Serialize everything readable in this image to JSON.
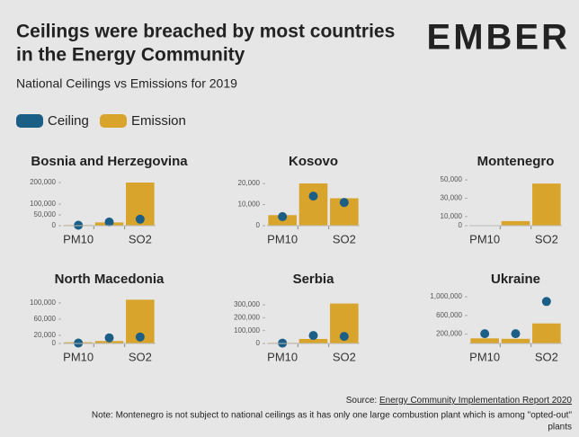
{
  "title_lines": [
    "Ceilings were breached by most countries",
    "in the Energy Community"
  ],
  "subtitle": "National Ceilings vs Emissions for 2019",
  "logo": "EMBER",
  "source_label": "Source:",
  "source_link": "Energy Community Implementation Report 2020",
  "note_lines": [
    "Note: Montenegro is not subject to national ceilings as it has only one large combustion plant which is among \"opted-out\"",
    "plants"
  ],
  "chart_data": [
    {
      "type": "bar",
      "title": "Bosnia and Herzegovina",
      "categories": [
        "PM10",
        null,
        "SO2"
      ],
      "ylim": [
        0,
        225000
      ],
      "yticks": [
        0,
        {
          "value": 50000,
          "label": "50,000"
        },
        {
          "value": 100000,
          "label": "100,000"
        },
        {
          "value": 200000,
          "label": "200,000"
        }
      ],
      "series": [
        {
          "name": "Emission",
          "type": "bar",
          "color": "#d9a42b",
          "values": [
            3000,
            15000,
            200000
          ]
        },
        {
          "name": "Ceiling",
          "type": "scatter",
          "color": "#1b5e86",
          "values": [
            2000,
            17000,
            30000
          ]
        }
      ]
    },
    {
      "type": "bar",
      "title": "Kosovo",
      "categories": [
        "PM10",
        null,
        "SO2"
      ],
      "ylim": [
        0,
        23000
      ],
      "yticks": [
        0,
        {
          "value": 10000,
          "label": "10,000"
        },
        {
          "value": 20000,
          "label": "20,000"
        }
      ],
      "series": [
        {
          "name": "Emission",
          "type": "bar",
          "color": "#d9a42b",
          "values": [
            5000,
            20000,
            13000
          ]
        },
        {
          "name": "Ceiling",
          "type": "scatter",
          "color": "#1b5e86",
          "values": [
            4300,
            14000,
            11000
          ]
        }
      ]
    },
    {
      "type": "bar",
      "title": "Montenegro",
      "categories": [
        "PM10",
        null,
        "SO2"
      ],
      "ylim": [
        0,
        53000
      ],
      "yticks": [
        0,
        {
          "value": 10000,
          "label": "10,000"
        },
        {
          "value": 30000,
          "label": "30,000"
        },
        {
          "value": 50000,
          "label": "50,000"
        }
      ],
      "series": [
        {
          "name": "Emission",
          "type": "bar",
          "color": "#d9a42b",
          "values": [
            500,
            5000,
            46000
          ]
        },
        {
          "name": "Ceiling",
          "type": "scatter",
          "color": "#1b5e86",
          "values": [
            null,
            null,
            null
          ]
        }
      ]
    },
    {
      "type": "bar",
      "title": "North Macedonia",
      "categories": [
        "PM10",
        null,
        "SO2"
      ],
      "ylim": [
        0,
        122000
      ],
      "yticks": [
        0,
        {
          "value": 20000,
          "label": "20,000"
        },
        {
          "value": 60000,
          "label": "60,000"
        },
        {
          "value": 100000,
          "label": "100,000"
        }
      ],
      "series": [
        {
          "name": "Emission",
          "type": "bar",
          "color": "#d9a42b",
          "values": [
            3000,
            6000,
            108000
          ]
        },
        {
          "name": "Ceiling",
          "type": "scatter",
          "color": "#1b5e86",
          "values": [
            1000,
            14000,
            16000
          ]
        }
      ]
    },
    {
      "type": "bar",
      "title": "Serbia",
      "categories": [
        "PM10",
        null,
        "SO2"
      ],
      "ylim": [
        0,
        384000
      ],
      "yticks": [
        0,
        {
          "value": 100000,
          "label": "100,000"
        },
        {
          "value": 200000,
          "label": "200,000"
        },
        {
          "value": 300000,
          "label": "300,000"
        }
      ],
      "series": [
        {
          "name": "Emission",
          "type": "bar",
          "color": "#d9a42b",
          "values": [
            5000,
            35000,
            310000
          ]
        },
        {
          "name": "Ceiling",
          "type": "scatter",
          "color": "#1b5e86",
          "values": [
            3000,
            62000,
            55000
          ]
        }
      ]
    },
    {
      "type": "bar",
      "title": "Ukraine",
      "categories": [
        "PM10",
        null,
        "SO2"
      ],
      "ylim": [
        0,
        1060000
      ],
      "yticks": [
        {
          "value": 200000,
          "label": "200,000"
        },
        {
          "value": 600000,
          "label": "600,000"
        },
        {
          "value": 1000000,
          "label": "1,000,000"
        }
      ],
      "series": [
        {
          "name": "Emission",
          "type": "bar",
          "color": "#d9a42b",
          "values": [
            110000,
            100000,
            430000
          ]
        },
        {
          "name": "Ceiling",
          "type": "scatter",
          "color": "#1b5e86",
          "values": [
            210000,
            210000,
            900000
          ]
        }
      ]
    }
  ]
}
